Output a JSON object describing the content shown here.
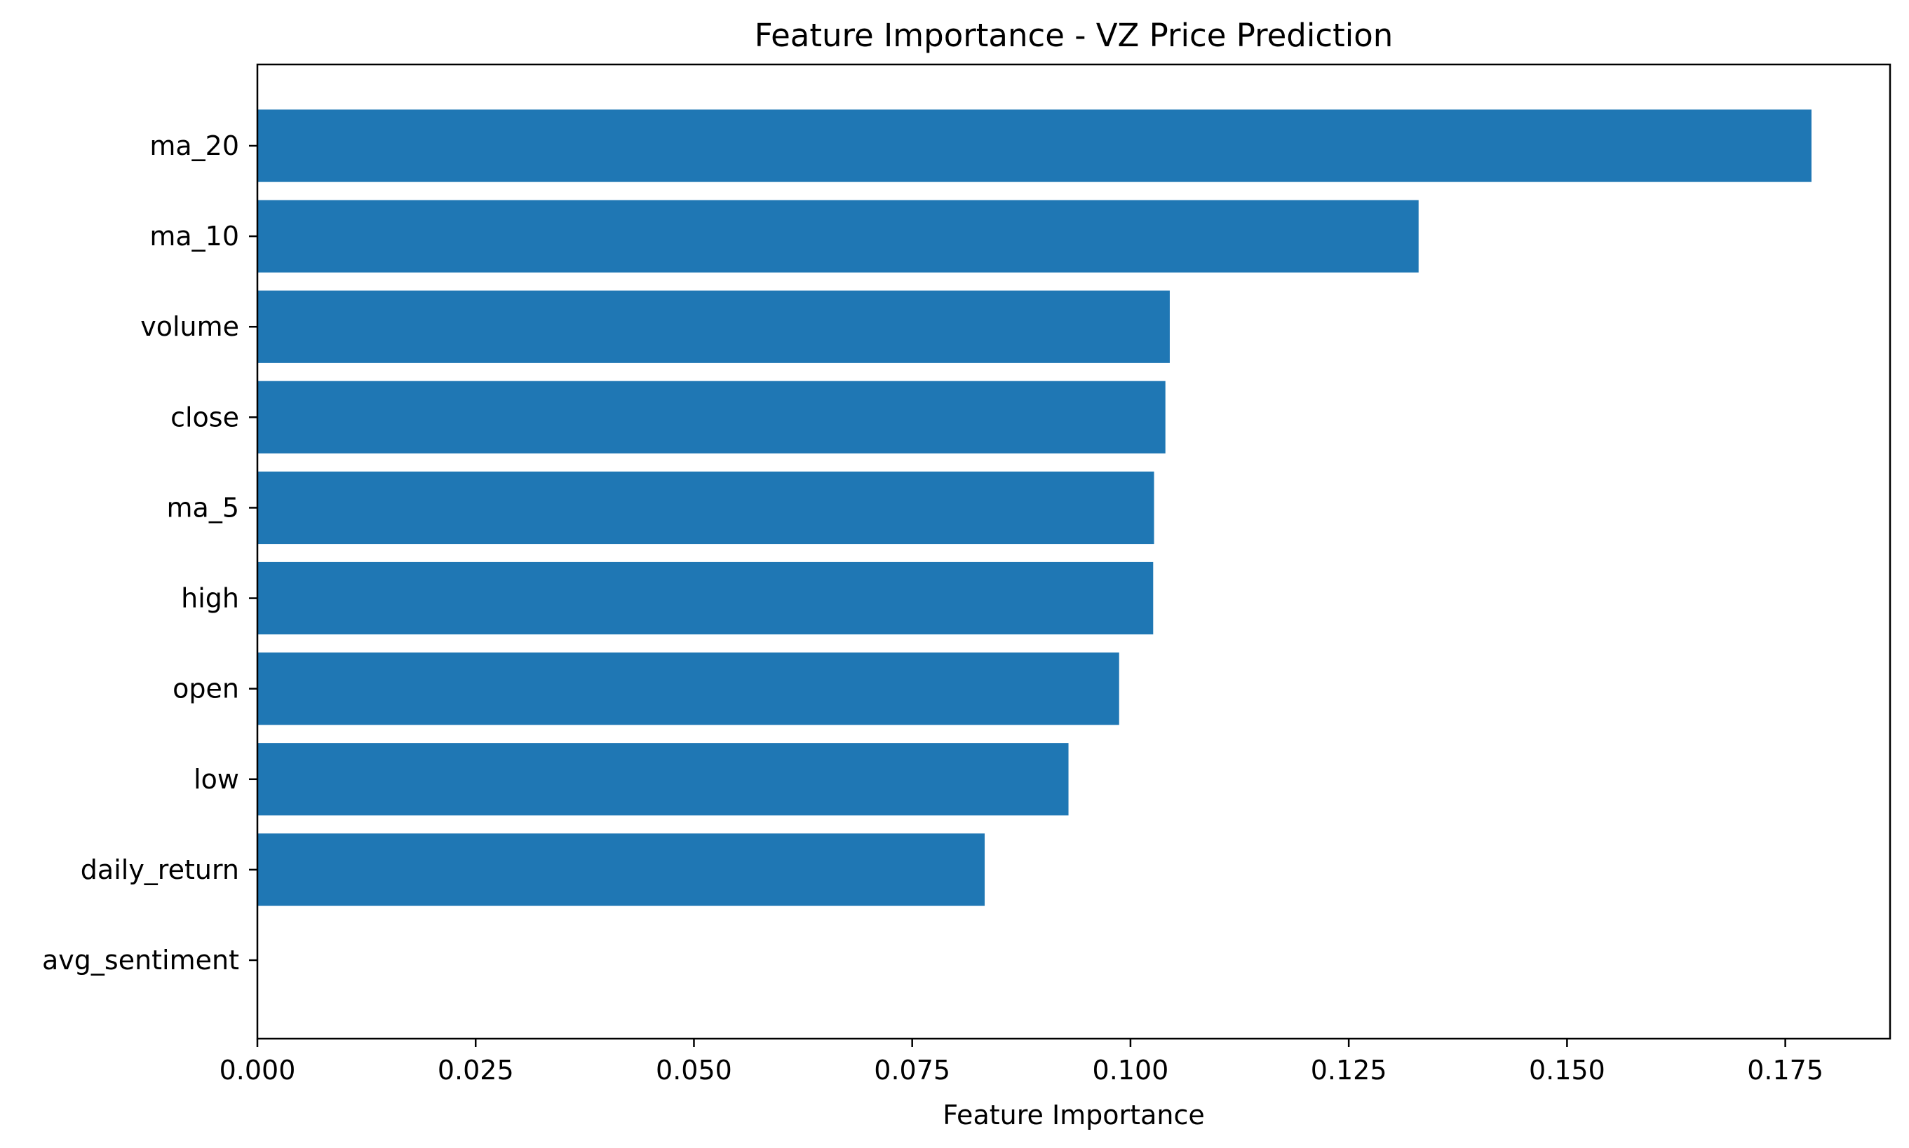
{
  "chart_data": {
    "type": "bar",
    "orientation": "horizontal",
    "title": "Feature Importance - VZ Price Prediction",
    "xlabel": "Feature Importance",
    "ylabel": "",
    "categories": [
      "ma_20",
      "ma_10",
      "volume",
      "close",
      "ma_5",
      "high",
      "open",
      "low",
      "daily_return",
      "avg_sentiment"
    ],
    "values": [
      0.178,
      0.133,
      0.1045,
      0.104,
      0.1027,
      0.1026,
      0.0987,
      0.0929,
      0.0833,
      0.0
    ],
    "xlim": [
      0.0,
      0.187
    ],
    "xticks": [
      "0.000",
      "0.025",
      "0.050",
      "0.075",
      "0.100",
      "0.125",
      "0.150",
      "0.175"
    ],
    "bar_color": "#1f77b4",
    "grid": false,
    "legend": false
  }
}
